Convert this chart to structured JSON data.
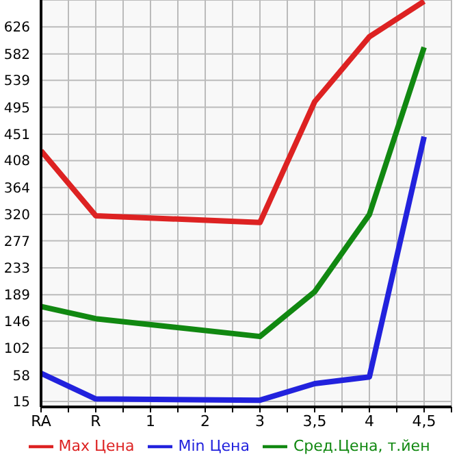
{
  "chart_data": {
    "type": "line",
    "categories": [
      "RA",
      "R",
      "1",
      "2",
      "3",
      "3,5",
      "4",
      "4,5"
    ],
    "series": [
      {
        "name": "Max Цена",
        "color": "#dd2222",
        "values": [
          424,
          318,
          null,
          null,
          307,
          504,
          610,
          668
        ]
      },
      {
        "name": "Min Цена",
        "color": "#2222dd",
        "values": [
          61,
          19,
          null,
          null,
          17,
          44,
          55,
          447
        ]
      },
      {
        "name": "Сред.Цена, т.йен",
        "color": "#118811",
        "values": [
          170,
          150,
          null,
          null,
          121,
          194,
          320,
          593
        ]
      }
    ],
    "ylim": [
      6,
      670
    ],
    "yticks": [
      15,
      58,
      102,
      146,
      189,
      233,
      277,
      320,
      364,
      408,
      451,
      495,
      539,
      582,
      626
    ],
    "grid": true,
    "legend": "bottom",
    "marker": "none",
    "line_style": "solid"
  }
}
